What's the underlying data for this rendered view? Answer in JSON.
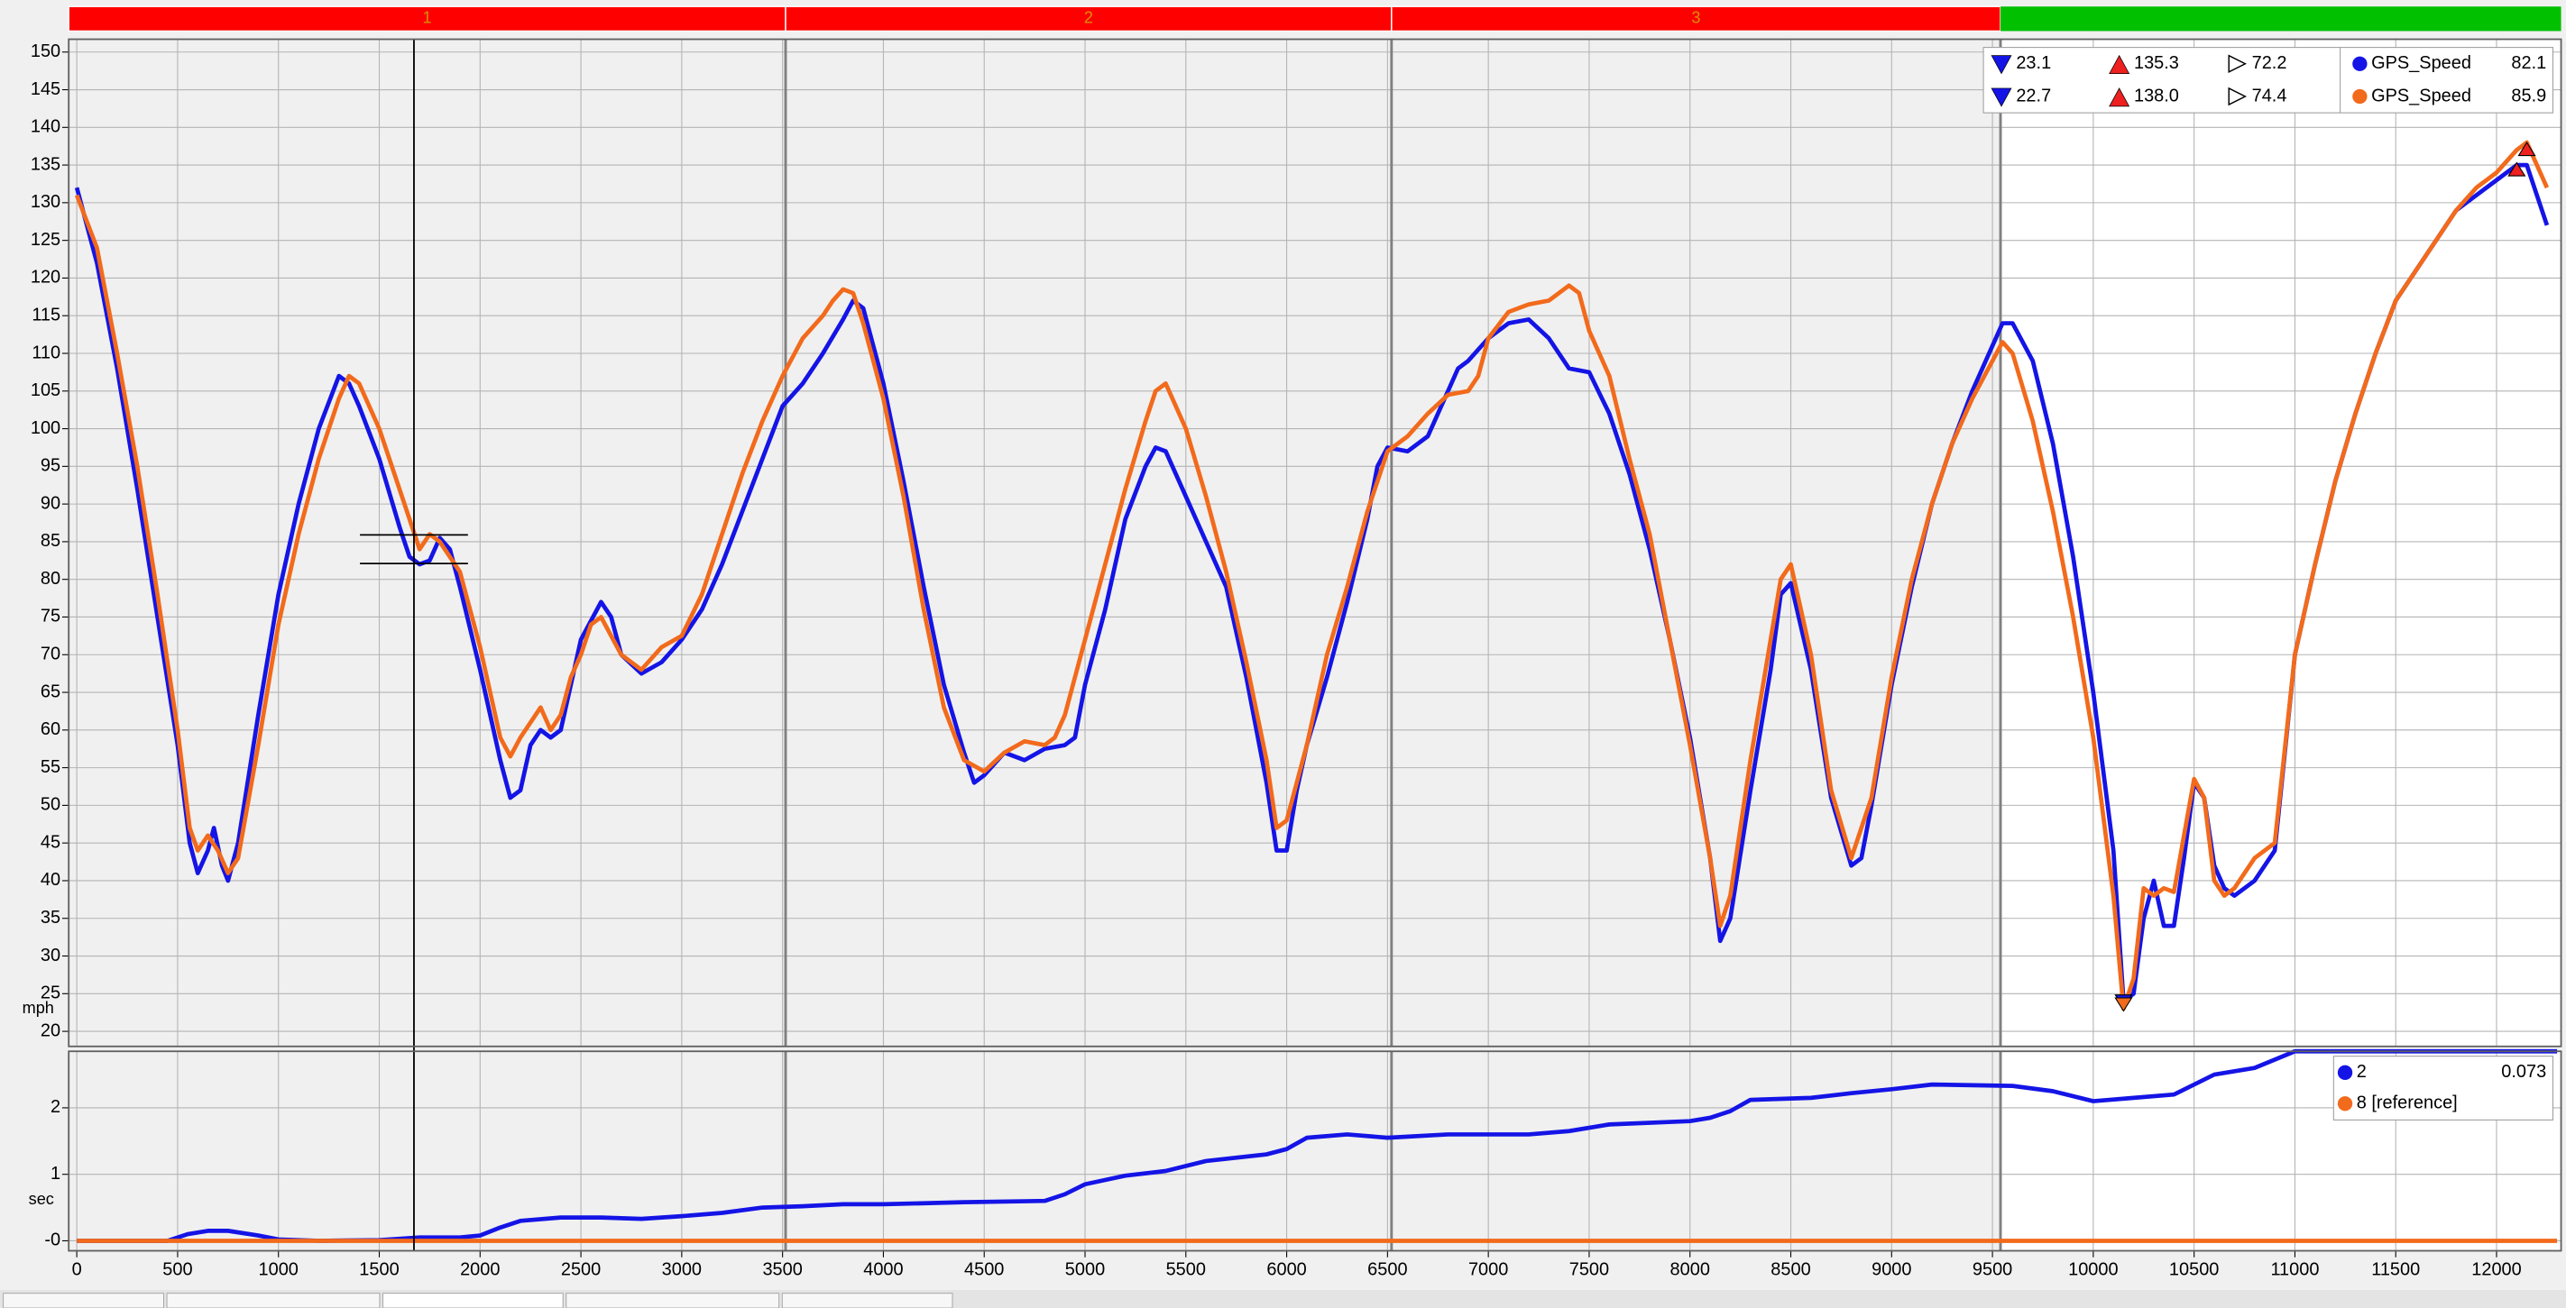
{
  "chart_data": [
    {
      "type": "line",
      "y_label": "mph",
      "xlim": [
        -40,
        12320
      ],
      "ylim": [
        18,
        151.7
      ],
      "xticks": [
        0,
        500,
        1000,
        1500,
        2000,
        2500,
        3000,
        3500,
        4000,
        4500,
        5000,
        5500,
        6000,
        6500,
        7000,
        7500,
        8000,
        8500,
        9000,
        9500,
        10000,
        10500,
        11000,
        11500,
        12000
      ],
      "yticks": [
        20,
        25,
        30,
        35,
        40,
        45,
        50,
        55,
        60,
        65,
        70,
        75,
        80,
        85,
        90,
        95,
        100,
        105,
        110,
        115,
        120,
        125,
        130,
        135,
        140,
        145,
        150
      ],
      "grid": true,
      "sectors": [
        {
          "label": "1",
          "end": 3515
        },
        {
          "label": "2",
          "end": 6520
        },
        {
          "label": "3",
          "end": 9540
        }
      ],
      "sector_color": "#ff0000",
      "final_sector_color": "#00c000",
      "cursor_x": 1672,
      "series": [
        {
          "name": "GPS_Speed",
          "color": "#1414e6",
          "cursor": 82.1,
          "stats": {
            "values": [
              23.1,
              135.3,
              72.2
            ]
          },
          "x": [
            0,
            100,
            200,
            300,
            400,
            500,
            560,
            600,
            650,
            680,
            720,
            750,
            800,
            900,
            1000,
            1100,
            1200,
            1300,
            1350,
            1400,
            1500,
            1600,
            1650,
            1700,
            1750,
            1800,
            1850,
            1900,
            2000,
            2100,
            2150,
            2200,
            2250,
            2300,
            2350,
            2400,
            2450,
            2500,
            2600,
            2650,
            2700,
            2800,
            2900,
            3000,
            3100,
            3200,
            3300,
            3400,
            3500,
            3600,
            3700,
            3800,
            3850,
            3900,
            4000,
            4100,
            4200,
            4300,
            4400,
            4450,
            4500,
            4600,
            4700,
            4800,
            4900,
            4950,
            5000,
            5100,
            5200,
            5300,
            5350,
            5400,
            5500,
            5600,
            5700,
            5800,
            5900,
            5950,
            6000,
            6050,
            6100,
            6200,
            6300,
            6400,
            6450,
            6500,
            6600,
            6700,
            6800,
            6850,
            6900,
            7000,
            7100,
            7200,
            7300,
            7400,
            7500,
            7600,
            7700,
            7800,
            7900,
            8000,
            8100,
            8150,
            8200,
            8300,
            8400,
            8450,
            8500,
            8600,
            8700,
            8800,
            8850,
            8900,
            9000,
            9100,
            9200,
            9300,
            9400,
            9500,
            9550,
            9600,
            9700,
            9800,
            9900,
            10000,
            10100,
            10150,
            10200,
            10250,
            10300,
            10350,
            10400,
            10450,
            10500,
            10550,
            10600,
            10650,
            10700,
            10800,
            10900,
            11000,
            11100,
            11200,
            11300,
            11400,
            11500,
            11600,
            11700,
            11800,
            11900,
            12000,
            12100,
            12150,
            12200,
            12250
          ],
          "values": [
            132,
            122,
            108,
            92,
            75,
            58,
            45,
            41,
            44,
            47,
            42,
            40,
            45,
            62,
            78,
            90,
            100,
            107,
            106,
            103,
            96,
            87,
            83,
            82,
            82.5,
            85.5,
            84,
            79,
            68,
            56,
            51,
            52,
            58,
            60,
            59,
            60,
            66,
            72,
            77,
            75,
            70,
            67.5,
            69,
            72,
            76,
            82,
            89,
            96,
            103,
            106,
            110,
            114.5,
            117,
            116,
            106,
            93,
            79,
            66,
            57,
            53,
            54,
            57,
            56,
            57.5,
            58,
            59,
            66,
            76,
            88,
            95,
            97.5,
            97,
            91,
            85,
            79,
            67,
            53,
            44,
            44,
            52,
            58,
            67,
            77,
            88,
            95,
            97.5,
            97,
            99,
            105,
            108,
            109,
            112,
            114,
            114.5,
            112,
            108,
            107.5,
            102,
            94,
            84,
            72,
            59,
            43,
            32,
            35,
            52,
            68,
            78,
            79.5,
            68,
            51,
            42,
            43,
            50,
            66,
            79,
            90,
            98,
            105,
            111,
            114,
            114,
            109,
            98,
            83,
            65,
            44,
            24,
            25,
            35,
            40,
            34,
            34,
            43,
            53,
            51,
            42,
            39,
            38,
            40,
            44,
            70,
            82,
            93,
            102,
            110,
            117,
            121,
            125,
            129,
            131,
            133,
            135,
            135,
            131,
            127
          ]
        },
        {
          "name": "GPS_Speed",
          "color": "#f26a1b",
          "cursor": 85.9,
          "stats": {
            "values": [
              22.7,
              138.0,
              74.4
            ],
            "value_labels": [
              "22.7",
              "138.0",
              "74.4"
            ]
          },
          "x": [
            0,
            100,
            200,
            300,
            400,
            500,
            560,
            600,
            650,
            700,
            750,
            800,
            900,
            1000,
            1100,
            1200,
            1300,
            1350,
            1400,
            1500,
            1600,
            1650,
            1700,
            1750,
            1800,
            1900,
            2000,
            2100,
            2150,
            2200,
            2300,
            2350,
            2400,
            2450,
            2500,
            2550,
            2600,
            2700,
            2800,
            2900,
            3000,
            3100,
            3200,
            3300,
            3400,
            3500,
            3600,
            3700,
            3750,
            3800,
            3850,
            3900,
            4000,
            4100,
            4200,
            4300,
            4400,
            4500,
            4600,
            4700,
            4800,
            4850,
            4900,
            5000,
            5100,
            5200,
            5300,
            5350,
            5400,
            5500,
            5600,
            5700,
            5800,
            5900,
            5950,
            6000,
            6100,
            6200,
            6300,
            6400,
            6500,
            6600,
            6700,
            6800,
            6900,
            6950,
            7000,
            7100,
            7200,
            7300,
            7400,
            7450,
            7500,
            7600,
            7700,
            7800,
            7900,
            8000,
            8100,
            8150,
            8200,
            8300,
            8400,
            8450,
            8500,
            8600,
            8700,
            8800,
            8900,
            9000,
            9100,
            9200,
            9300,
            9400,
            9500,
            9550,
            9600,
            9700,
            9800,
            9900,
            10000,
            10100,
            10150,
            10200,
            10250,
            10300,
            10350,
            10400,
            10450,
            10500,
            10550,
            10600,
            10650,
            10700,
            10800,
            10900,
            11000,
            11100,
            11200,
            11300,
            11400,
            11500,
            11600,
            11700,
            11800,
            11900,
            12000,
            12100,
            12150,
            12200,
            12250
          ],
          "values": [
            131,
            124,
            110,
            95,
            78,
            60,
            47,
            44,
            46,
            44,
            41,
            43,
            58,
            74,
            86,
            96,
            104,
            107,
            106,
            100,
            92,
            88,
            84,
            86,
            85,
            81,
            71,
            59,
            56.5,
            59,
            63,
            60,
            62,
            67,
            70,
            74,
            75,
            70,
            68,
            71,
            72.5,
            78,
            86,
            94,
            101,
            107,
            112,
            115,
            117,
            118.5,
            118,
            114,
            104,
            91,
            76,
            63,
            56,
            54.5,
            57,
            58.5,
            58,
            59,
            62,
            72,
            82,
            92,
            101,
            105,
            106,
            100,
            91,
            81,
            69,
            56,
            47,
            48,
            58,
            70,
            79,
            89,
            97,
            99,
            102,
            104.5,
            105,
            107,
            112,
            115.5,
            116.5,
            117,
            119,
            118,
            113,
            107,
            96,
            86,
            72,
            58,
            43,
            34,
            38,
            56,
            72,
            80,
            82,
            70,
            52,
            43,
            51,
            67,
            80,
            90,
            98,
            104,
            109,
            111.5,
            110,
            101,
            89,
            75,
            59,
            38,
            23,
            27,
            39,
            38,
            39,
            38.5,
            46,
            53.5,
            51,
            40,
            38,
            39,
            43,
            45,
            70,
            82,
            93,
            102,
            110,
            117,
            121,
            125,
            129,
            132,
            134,
            137,
            138,
            135,
            132
          ]
        }
      ]
    },
    {
      "type": "line",
      "y_label": "sec",
      "xlim": [
        -40,
        12320
      ],
      "ylim": [
        -0.15,
        2.85
      ],
      "xticks": [
        0,
        500,
        1000,
        1500,
        2000,
        2500,
        3000,
        3500,
        4000,
        4500,
        5000,
        5500,
        6000,
        6500,
        7000,
        7500,
        8000,
        8500,
        9000,
        9500,
        10000,
        10500,
        11000,
        11500,
        12000
      ],
      "yticks": [
        {
          "value": 0,
          "label": "-0"
        },
        1,
        2
      ],
      "grid": true,
      "series": [
        {
          "name": "2",
          "color": "#1414e6",
          "cursor": 0.073,
          "x": [
            0,
            450,
            550,
            650,
            750,
            900,
            1000,
            1200,
            1500,
            1700,
            1900,
            2000,
            2100,
            2200,
            2400,
            2600,
            2800,
            3000,
            3200,
            3400,
            3600,
            3800,
            4000,
            4400,
            4800,
            4900,
            5000,
            5200,
            5400,
            5600,
            5900,
            6000,
            6100,
            6300,
            6500,
            6800,
            7200,
            7400,
            7600,
            8000,
            8100,
            8200,
            8300,
            8600,
            8800,
            9000,
            9200,
            9600,
            9800,
            10000,
            10200,
            10400,
            10600,
            10800,
            11000,
            12300
          ],
          "values": [
            0,
            0,
            0.1,
            0.15,
            0.15,
            0.08,
            0.02,
            0,
            0.01,
            0.05,
            0.05,
            0.08,
            0.2,
            0.3,
            0.35,
            0.35,
            0.33,
            0.37,
            0.42,
            0.5,
            0.52,
            0.55,
            0.55,
            0.58,
            0.6,
            0.7,
            0.85,
            0.98,
            1.05,
            1.2,
            1.3,
            1.38,
            1.55,
            1.6,
            1.55,
            1.6,
            1.6,
            1.65,
            1.75,
            1.8,
            1.85,
            1.95,
            2.12,
            2.15,
            2.22,
            2.28,
            2.35,
            2.33,
            2.25,
            2.1,
            2.15,
            2.2,
            2.5,
            2.6,
            2.85,
            2.85
          ]
        },
        {
          "name": "8 [reference]",
          "color": "#f26a1b",
          "x": [
            0,
            12300
          ],
          "values": [
            0,
            0
          ]
        }
      ]
    }
  ]
}
